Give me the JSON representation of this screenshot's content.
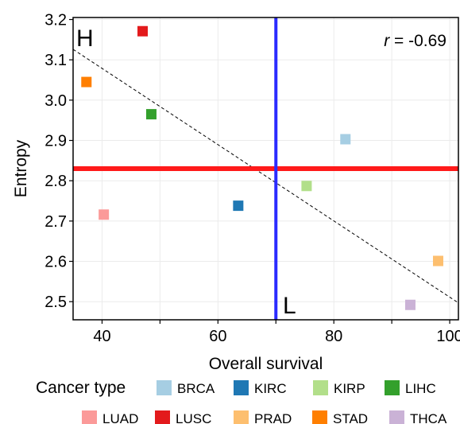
{
  "chart_data": {
    "type": "scatter",
    "xlabel": "Overall survival",
    "ylabel": "Entropy",
    "xlim": [
      35,
      101.5
    ],
    "ylim": [
      2.455,
      3.205
    ],
    "x_ticks": [
      40,
      60,
      80,
      100
    ],
    "x_minor_ticks": [
      50,
      70,
      90
    ],
    "y_ticks": [
      2.5,
      2.6,
      2.7,
      2.8,
      2.9,
      3.0,
      3.1,
      3.2
    ],
    "y_tick_labels": [
      "2.5",
      "2.6",
      "2.7",
      "2.8",
      "2.9",
      "3.0",
      "3.1",
      "3.2"
    ],
    "grid": true,
    "legend_title": "Cancer type",
    "legend_position": "bottom",
    "annotation_prefix": "r",
    "annotation_value": " = -0.69",
    "corner_label_high": "H",
    "corner_label_low": "L",
    "vline_x": 70,
    "vline_color": "#2b2bff",
    "hline_y": 2.83,
    "hline_color": "#ff1a1a",
    "trend": {
      "from": [
        35,
        3.126
      ],
      "to": [
        101.5,
        2.497
      ]
    },
    "points": [
      {
        "name": "BRCA",
        "x": 82,
        "y": 2.903,
        "color": "#a6cee3"
      },
      {
        "name": "KIRC",
        "x": 63.5,
        "y": 2.738,
        "color": "#1f78b4"
      },
      {
        "name": "KIRP",
        "x": 75.3,
        "y": 2.787,
        "color": "#b2df8a"
      },
      {
        "name": "LIHC",
        "x": 48.5,
        "y": 2.965,
        "color": "#33a02c"
      },
      {
        "name": "LUAD",
        "x": 40.3,
        "y": 2.716,
        "color": "#fb9a99"
      },
      {
        "name": "LUSC",
        "x": 47,
        "y": 3.171,
        "color": "#e31a1c"
      },
      {
        "name": "PRAD",
        "x": 98,
        "y": 2.601,
        "color": "#fdbf6f"
      },
      {
        "name": "STAD",
        "x": 37.3,
        "y": 3.045,
        "color": "#ff7f00"
      },
      {
        "name": "THCA",
        "x": 93.2,
        "y": 2.492,
        "color": "#cab2d6"
      }
    ],
    "legend_rows": [
      [
        "BRCA",
        "KIRC",
        "KIRP",
        "LIHC"
      ],
      [
        "LUAD",
        "LUSC",
        "PRAD",
        "STAD",
        "THCA"
      ]
    ]
  }
}
